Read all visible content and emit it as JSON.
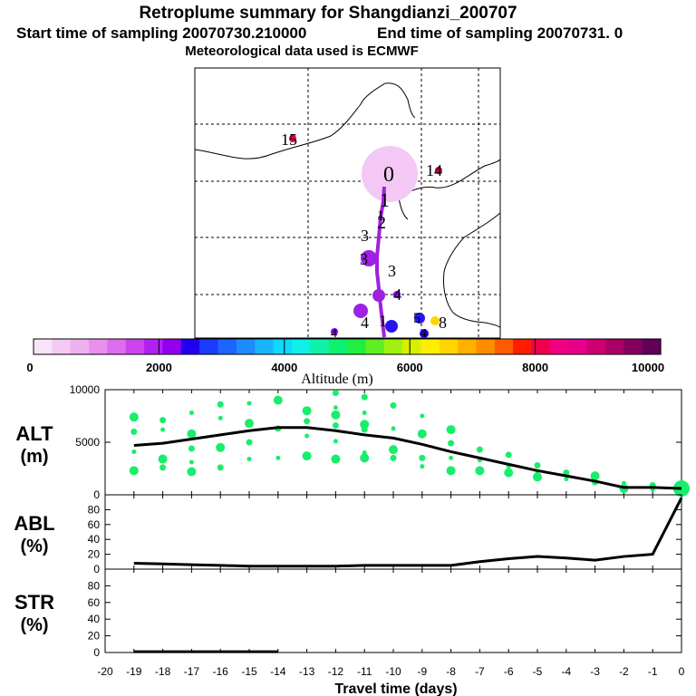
{
  "header": {
    "title": "Retroplume summary for Shangdianzi_200707",
    "subtitle_start": "Start time of sampling 20070730.210000",
    "subtitle_end": "End time of sampling 20070731.     0",
    "subtitle_met": "Meteorological data used is ECMWF"
  },
  "colorbar": {
    "label": "Altitude (m)",
    "ticks": [
      "0",
      "2000",
      "4000",
      "6000",
      "8000",
      "10000"
    ],
    "colors": [
      "#f8e4f8",
      "#f4caf4",
      "#eeb0f0",
      "#e890ee",
      "#de6cee",
      "#cc44ee",
      "#b020f0",
      "#9000ee",
      "#2200ee",
      "#1a3cff",
      "#1c66ff",
      "#1e8cff",
      "#18b4ff",
      "#10d8ff",
      "#10f0e8",
      "#10f0a8",
      "#10f070",
      "#20ee40",
      "#60ee20",
      "#a0f010",
      "#d8f000",
      "#ffee00",
      "#ffd400",
      "#ffb000",
      "#ff8c00",
      "#ff5c00",
      "#ff1c00",
      "#f0004c",
      "#ee0080",
      "#e6008c",
      "#cc0070",
      "#a80064",
      "#84005c",
      "#600058"
    ]
  },
  "map": {
    "labels": [
      {
        "text": "0",
        "color": "#000000"
      },
      {
        "text": "1",
        "color": "#000000"
      },
      {
        "text": "2",
        "color": "#000000"
      },
      {
        "text": "3",
        "color": "#000000"
      },
      {
        "text": "3",
        "color": "#000000"
      },
      {
        "text": "3",
        "color": "#000000"
      },
      {
        "text": "4",
        "color": "#000000"
      },
      {
        "text": "4",
        "color": "#000000"
      },
      {
        "text": "4",
        "color": "#000000"
      },
      {
        "text": "1",
        "color": "#000000"
      },
      {
        "text": "5",
        "color": "#000000"
      },
      {
        "text": "8",
        "color": "#000000"
      },
      {
        "text": "14",
        "color": "#000000"
      },
      {
        "text": "15",
        "color": "#000000"
      },
      {
        "text": "4",
        "color": "#000000"
      },
      {
        "text": "1",
        "color": "#000000"
      }
    ]
  },
  "chart_data": [
    {
      "type": "line",
      "panel": "ALT",
      "ylabel_line1": "ALT",
      "ylabel_line2": "(m)",
      "x": [
        -19,
        -18,
        -17,
        -16,
        -15,
        -14,
        -13,
        -12,
        -11,
        -10,
        -9,
        -8,
        -7,
        -6,
        -5,
        -4,
        -3,
        -2,
        -1,
        0
      ],
      "values": [
        4700,
        4900,
        5300,
        5700,
        6100,
        6400,
        6400,
        6100,
        5700,
        5400,
        4800,
        4100,
        3500,
        2900,
        2300,
        1800,
        1300,
        700,
        700,
        600
      ],
      "ylim": [
        0,
        10000
      ],
      "yticks": [
        "0",
        "5000",
        "10000"
      ],
      "scatter_points": [
        {
          "x": -19,
          "y": 7400
        },
        {
          "x": -19,
          "y": 6000
        },
        {
          "x": -19,
          "y": 4100
        },
        {
          "x": -19,
          "y": 2300
        },
        {
          "x": -18,
          "y": 7100
        },
        {
          "x": -18,
          "y": 6200
        },
        {
          "x": -18,
          "y": 3400
        },
        {
          "x": -18,
          "y": 2600
        },
        {
          "x": -17,
          "y": 7800
        },
        {
          "x": -17,
          "y": 5800
        },
        {
          "x": -17,
          "y": 4400
        },
        {
          "x": -17,
          "y": 3100
        },
        {
          "x": -17,
          "y": 2200
        },
        {
          "x": -16,
          "y": 8600
        },
        {
          "x": -16,
          "y": 7300
        },
        {
          "x": -16,
          "y": 4500
        },
        {
          "x": -16,
          "y": 2600
        },
        {
          "x": -15,
          "y": 8700
        },
        {
          "x": -15,
          "y": 6800
        },
        {
          "x": -15,
          "y": 5000
        },
        {
          "x": -15,
          "y": 3400
        },
        {
          "x": -14,
          "y": 9000
        },
        {
          "x": -14,
          "y": 6300
        },
        {
          "x": -14,
          "y": 3500
        },
        {
          "x": -13,
          "y": 8000
        },
        {
          "x": -13,
          "y": 7000
        },
        {
          "x": -13,
          "y": 5600
        },
        {
          "x": -13,
          "y": 3700
        },
        {
          "x": -12,
          "y": 9700
        },
        {
          "x": -12,
          "y": 8300
        },
        {
          "x": -12,
          "y": 7600
        },
        {
          "x": -12,
          "y": 6600
        },
        {
          "x": -12,
          "y": 5100
        },
        {
          "x": -12,
          "y": 3400
        },
        {
          "x": -11,
          "y": 9300
        },
        {
          "x": -11,
          "y": 7800
        },
        {
          "x": -11,
          "y": 6700
        },
        {
          "x": -11,
          "y": 6200
        },
        {
          "x": -11,
          "y": 4000
        },
        {
          "x": -11,
          "y": 3500
        },
        {
          "x": -10,
          "y": 8500
        },
        {
          "x": -10,
          "y": 6300
        },
        {
          "x": -10,
          "y": 4300
        },
        {
          "x": -10,
          "y": 3500
        },
        {
          "x": -9,
          "y": 7500
        },
        {
          "x": -9,
          "y": 5800
        },
        {
          "x": -9,
          "y": 3500
        },
        {
          "x": -9,
          "y": 2700
        },
        {
          "x": -8,
          "y": 6200
        },
        {
          "x": -8,
          "y": 4900
        },
        {
          "x": -8,
          "y": 3500
        },
        {
          "x": -8,
          "y": 2300
        },
        {
          "x": -7,
          "y": 4300
        },
        {
          "x": -7,
          "y": 3300
        },
        {
          "x": -7,
          "y": 2300
        },
        {
          "x": -6,
          "y": 3800
        },
        {
          "x": -6,
          "y": 2700
        },
        {
          "x": -6,
          "y": 2100
        },
        {
          "x": -5,
          "y": 2800
        },
        {
          "x": -5,
          "y": 2200
        },
        {
          "x": -5,
          "y": 1700
        },
        {
          "x": -4,
          "y": 2100
        },
        {
          "x": -4,
          "y": 1500
        },
        {
          "x": -3,
          "y": 1800
        },
        {
          "x": -3,
          "y": 1200
        },
        {
          "x": -2,
          "y": 1100
        },
        {
          "x": -2,
          "y": 600
        },
        {
          "x": -1,
          "y": 900
        },
        {
          "x": -1,
          "y": 500
        },
        {
          "x": 0,
          "y": 600
        }
      ]
    },
    {
      "type": "line",
      "panel": "ABL",
      "ylabel_line1": "ABL",
      "ylabel_line2": "(%)",
      "x": [
        -19,
        -18,
        -17,
        -16,
        -15,
        -14,
        -13,
        -12,
        -11,
        -10,
        -9,
        -8,
        -7,
        -6,
        -5,
        -4,
        -3,
        -2,
        -1,
        0
      ],
      "values": [
        8,
        7,
        6,
        5,
        4,
        4,
        4,
        4,
        5,
        5,
        5,
        5,
        10,
        14,
        17,
        15,
        12,
        17,
        20,
        96
      ],
      "ylim": [
        0,
        100
      ],
      "yticks": [
        "0",
        "20",
        "40",
        "60",
        "80"
      ]
    },
    {
      "type": "line",
      "panel": "STR",
      "ylabel_line1": "STR",
      "ylabel_line2": "(%)",
      "x": [
        -19,
        -18,
        -17,
        -16,
        -15,
        -14
      ],
      "values": [
        1,
        1,
        1,
        1,
        1,
        1
      ],
      "ylim": [
        0,
        100
      ],
      "yticks": [
        "0",
        "20",
        "40",
        "60",
        "80"
      ]
    }
  ],
  "xaxis": {
    "label": "Travel time (days)",
    "ticks": [
      "-20",
      "-19",
      "-18",
      "-17",
      "-16",
      "-15",
      "-14",
      "-13",
      "-12",
      "-11",
      "-10",
      "-9",
      "-8",
      "-7",
      "-6",
      "-5",
      "-4",
      "-3",
      "-2",
      "-1",
      "0"
    ]
  }
}
